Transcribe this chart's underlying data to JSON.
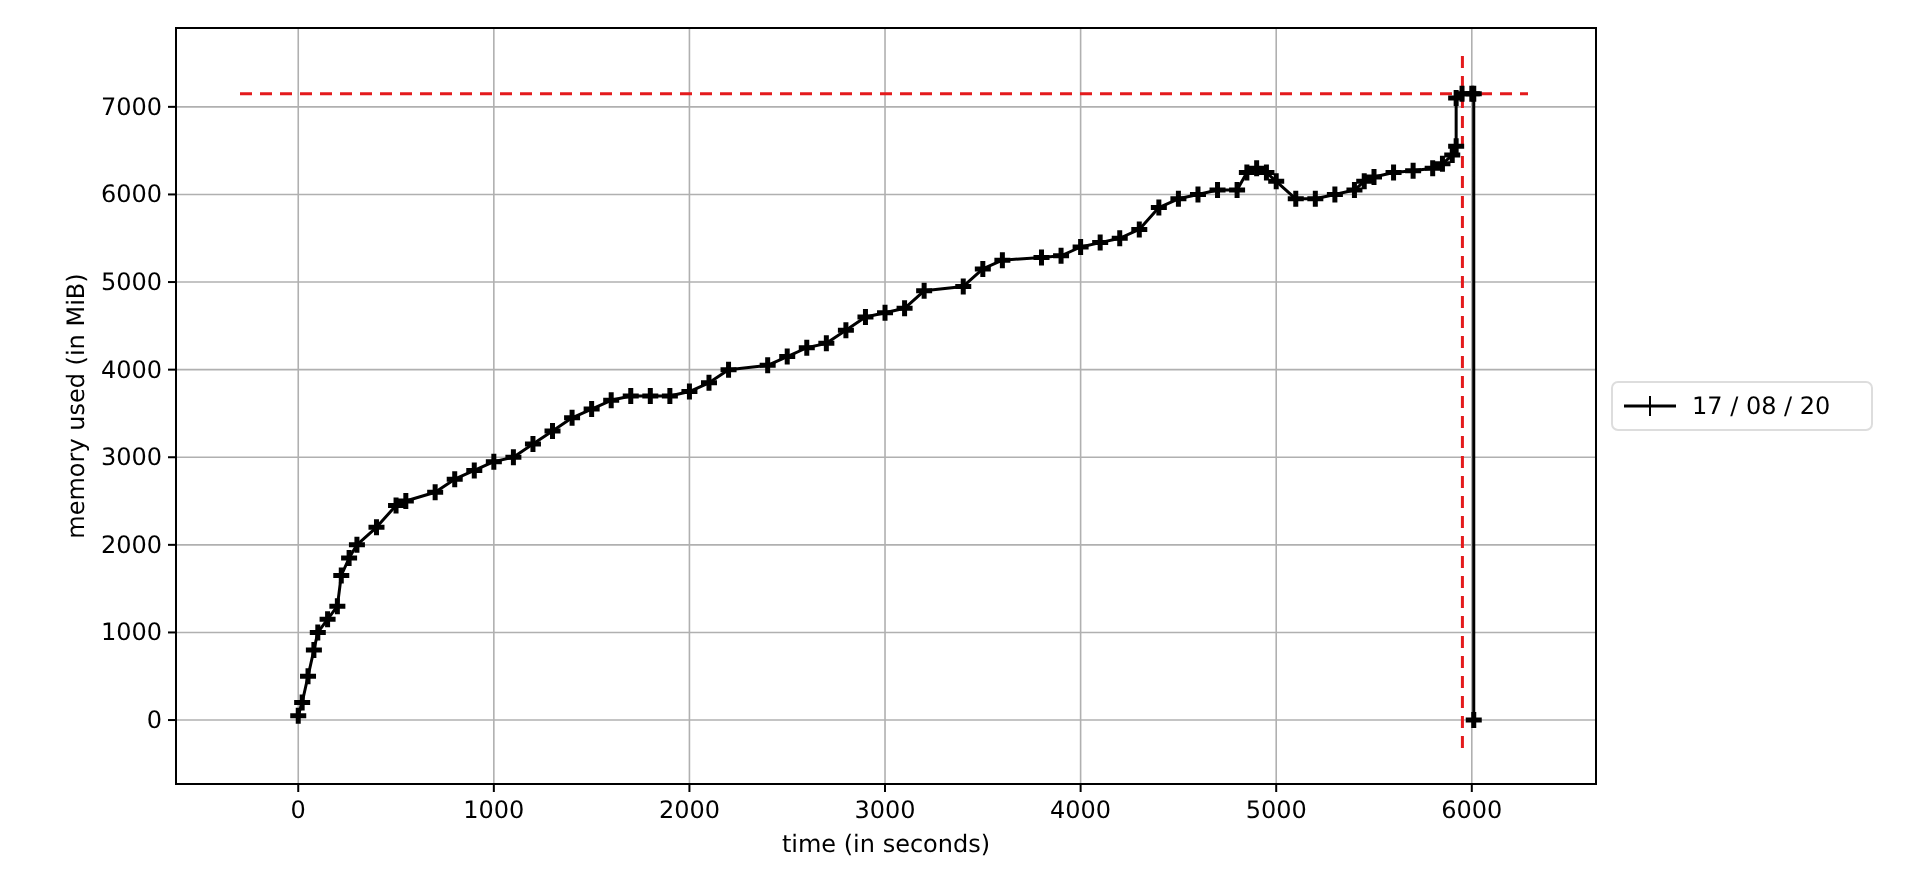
{
  "chart_data": {
    "type": "line",
    "xlabel": "time (in seconds)",
    "ylabel": "memory used (in MiB)",
    "xlim": [
      -625,
      6635
    ],
    "ylim": [
      -730,
      7900
    ],
    "xticks": [
      0,
      1000,
      2000,
      3000,
      4000,
      5000,
      6000
    ],
    "yticks": [
      0,
      1000,
      2000,
      3000,
      4000,
      5000,
      6000,
      7000
    ],
    "grid": true,
    "legend": "right",
    "marker": "cross",
    "line_style": "solid",
    "series": [
      {
        "name": "17 / 08 / 20",
        "color": "#000000",
        "x": [
          0,
          20,
          50,
          80,
          100,
          150,
          200,
          220,
          260,
          300,
          400,
          500,
          550,
          700,
          800,
          900,
          1000,
          1100,
          1200,
          1300,
          1400,
          1500,
          1600,
          1700,
          1800,
          1900,
          2000,
          2100,
          2200,
          2400,
          2500,
          2600,
          2700,
          2800,
          2900,
          3000,
          3100,
          3200,
          3400,
          3500,
          3600,
          3800,
          3900,
          4000,
          4100,
          4200,
          4300,
          4400,
          4500,
          4600,
          4700,
          4800,
          4850,
          4900,
          4950,
          5000,
          5100,
          5200,
          5300,
          5400,
          5450,
          5500,
          5600,
          5700,
          5800,
          5850,
          5900,
          5920,
          5920,
          5950,
          6000,
          6010,
          6010
        ],
        "values": [
          50,
          200,
          500,
          800,
          1000,
          1150,
          1300,
          1650,
          1850,
          2000,
          2200,
          2450,
          2500,
          2600,
          2750,
          2850,
          2950,
          3000,
          3150,
          3300,
          3450,
          3550,
          3650,
          3700,
          3700,
          3700,
          3750,
          3850,
          4000,
          4050,
          4150,
          4250,
          4300,
          4450,
          4600,
          4650,
          4700,
          4900,
          4950,
          5150,
          5250,
          5280,
          5300,
          5400,
          5450,
          5500,
          5600,
          5850,
          5950,
          6000,
          6050,
          6050,
          6250,
          6300,
          6250,
          6150,
          5950,
          5950,
          6000,
          6050,
          6150,
          6200,
          6250,
          6270,
          6300,
          6350,
          6450,
          6550,
          7100,
          7150,
          7150,
          7150,
          0
        ]
      }
    ],
    "ref_lines": [
      {
        "axis": "y",
        "value": 7150,
        "color": "#e41a1c",
        "line_style": "dashed"
      },
      {
        "axis": "x",
        "value": 5952,
        "color": "#e41a1c",
        "line_style": "dashed"
      }
    ]
  }
}
